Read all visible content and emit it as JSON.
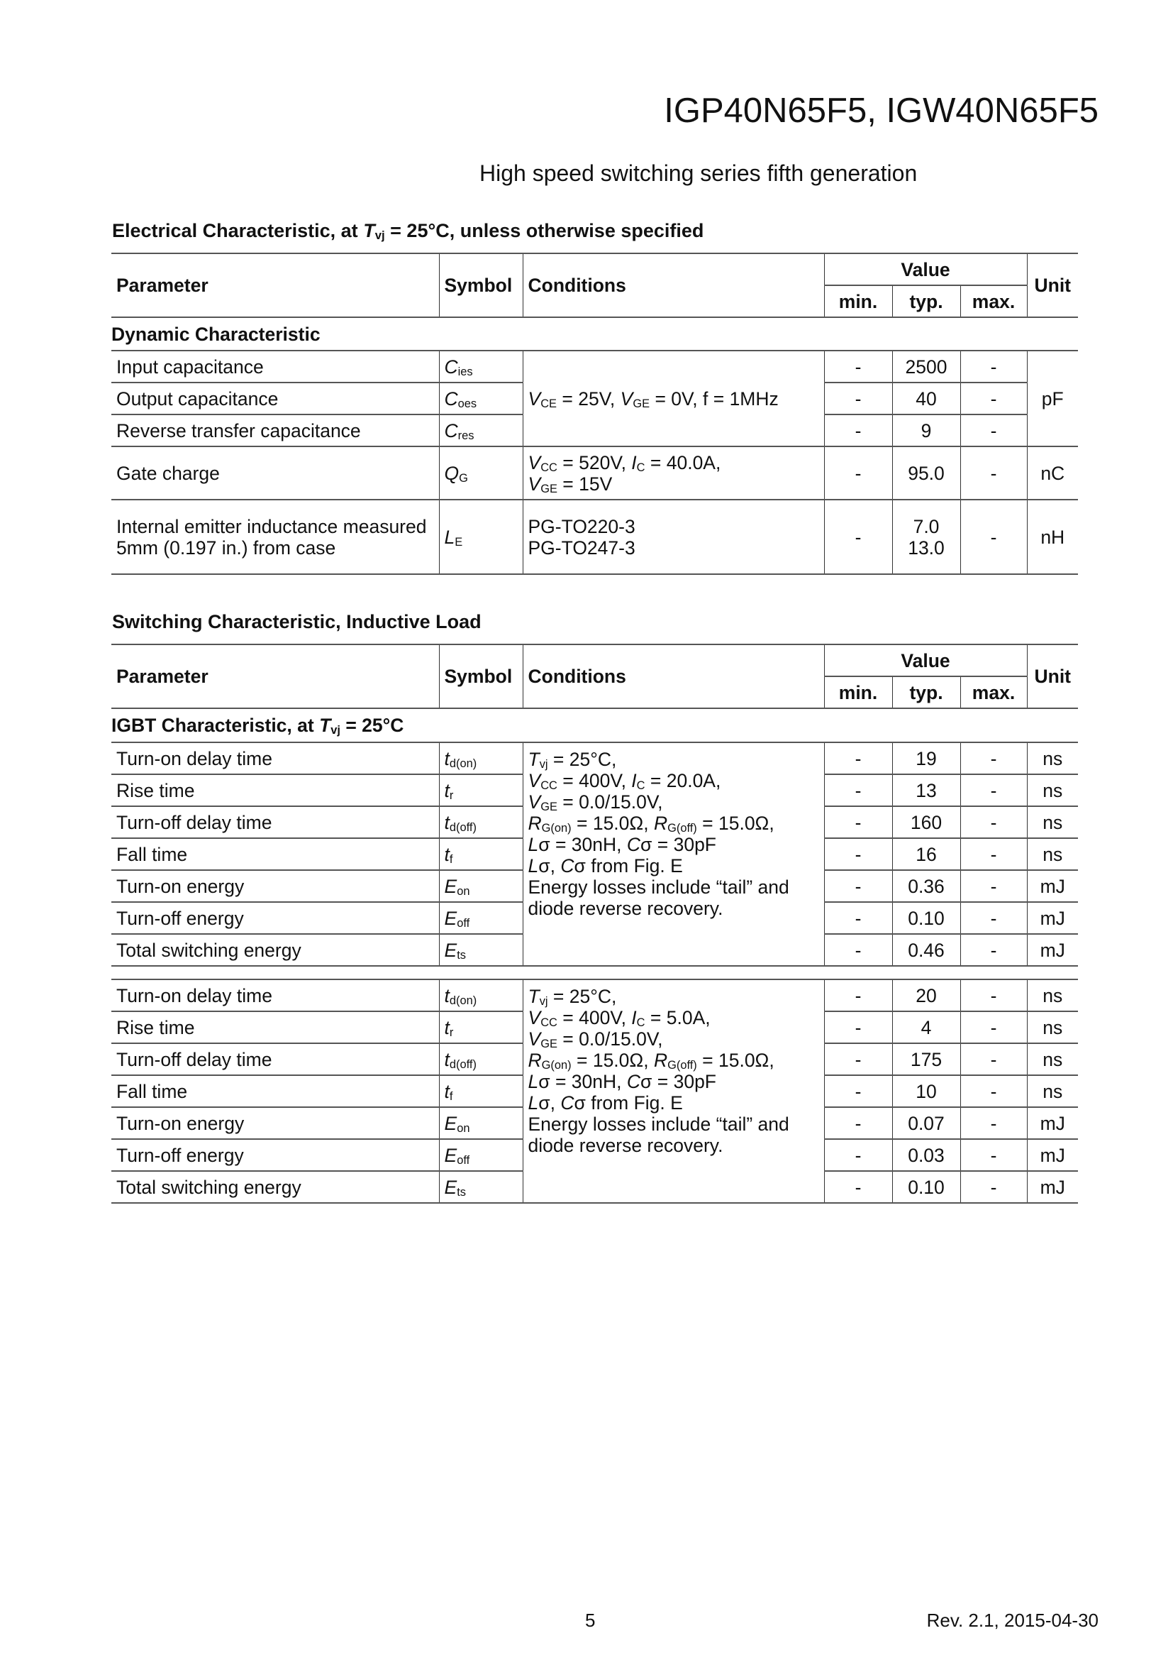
{
  "header": {
    "title": "IGP40N65F5, IGW40N65F5",
    "subtitle": "High speed switching series fifth generation"
  },
  "table_headers": {
    "parameter": "Parameter",
    "symbol": "Symbol",
    "conditions": "Conditions",
    "value": "Value",
    "min": "min.",
    "typ": "typ.",
    "max": "max.",
    "unit": "Unit"
  },
  "electrical": {
    "heading": [
      [
        "Electrical Characteristic, at ",
        ""
      ],
      [
        "T",
        "i"
      ],
      [
        "vj",
        "sub"
      ],
      [
        " = 25°C, unless otherwise specified",
        ""
      ]
    ],
    "subheading": [
      [
        "Dynamic Characteristic",
        ""
      ]
    ],
    "groups": [
      {
        "conditions": [
          [
            [
              "V",
              "i"
            ],
            [
              "CE",
              "sub"
            ],
            [
              " = 25V, ",
              ""
            ],
            [
              "V",
              "i"
            ],
            [
              "GE",
              "sub"
            ],
            [
              " = 0V, f = 1MHz",
              ""
            ]
          ]
        ],
        "unit": "pF",
        "rows": [
          {
            "parameter": "Input capacitance",
            "symbol": [
              [
                "C",
                "i"
              ],
              [
                "ies",
                "sub"
              ]
            ],
            "min": "-",
            "typ": "2500",
            "max": "-"
          },
          {
            "parameter": "Output capacitance",
            "symbol": [
              [
                "C",
                "i"
              ],
              [
                "oes",
                "sub"
              ]
            ],
            "min": "-",
            "typ": "40",
            "max": "-"
          },
          {
            "parameter": "Reverse transfer capacitance",
            "symbol": [
              [
                "C",
                "i"
              ],
              [
                "res",
                "sub"
              ]
            ],
            "min": "-",
            "typ": "9",
            "max": "-"
          }
        ]
      },
      {
        "conditions": [
          [
            [
              "V",
              "i"
            ],
            [
              "CC",
              "sub"
            ],
            [
              " = 520V, ",
              ""
            ],
            [
              "I",
              "i"
            ],
            [
              "C",
              "sub"
            ],
            [
              " = 40.0A,",
              ""
            ]
          ],
          [
            [
              "V",
              "i"
            ],
            [
              "GE",
              "sub"
            ],
            [
              " = 15V",
              ""
            ]
          ]
        ],
        "unit": "nC",
        "rows": [
          {
            "parameter": "Gate charge",
            "symbol": [
              [
                "Q",
                "i"
              ],
              [
                "G",
                "sub"
              ]
            ],
            "min": "-",
            "typ": "95.0",
            "max": "-"
          }
        ]
      },
      {
        "conditions": [
          [
            [
              "PG-TO220-3",
              ""
            ]
          ],
          [
            [
              "PG-TO247-3",
              ""
            ]
          ]
        ],
        "unit": "nH",
        "rows": [
          {
            "parameter": "Internal emitter inductance measured 5mm (0.197 in.) from case",
            "symbol": [
              [
                "L",
                "i"
              ],
              [
                "E",
                "sub"
              ]
            ],
            "min": "-",
            "typ": "7.0\n13.0",
            "max": "-"
          }
        ]
      }
    ]
  },
  "switching": {
    "heading": [
      [
        "Switching Characteristic, Inductive Load",
        ""
      ]
    ],
    "subheading": [
      [
        "IGBT Characteristic, at ",
        ""
      ],
      [
        "T",
        "i"
      ],
      [
        "vj",
        "sub"
      ],
      [
        " = 25°C",
        ""
      ]
    ],
    "groups": [
      {
        "conditions": [
          [
            [
              "T",
              "i"
            ],
            [
              "vj",
              "sub"
            ],
            [
              " = 25°C,",
              ""
            ]
          ],
          [
            [
              "V",
              "i"
            ],
            [
              "CC",
              "sub"
            ],
            [
              " = 400V, ",
              ""
            ],
            [
              "I",
              "i"
            ],
            [
              "C",
              "sub"
            ],
            [
              " = 20.0A,",
              ""
            ]
          ],
          [
            [
              "V",
              "i"
            ],
            [
              "GE",
              "sub"
            ],
            [
              " = 0.0/15.0V,",
              ""
            ]
          ],
          [
            [
              "R",
              "i"
            ],
            [
              "G(on)",
              "sub"
            ],
            [
              " = 15.0Ω, ",
              ""
            ],
            [
              "R",
              "i"
            ],
            [
              "G(off)",
              "sub"
            ],
            [
              " = 15.0Ω,",
              ""
            ]
          ],
          [
            [
              "L",
              "i"
            ],
            [
              "σ = 30nH, ",
              ""
            ],
            [
              "C",
              "i"
            ],
            [
              "σ = 30pF",
              ""
            ]
          ],
          [
            [
              "L",
              "i"
            ],
            [
              "σ, ",
              ""
            ],
            [
              "C",
              "i"
            ],
            [
              "σ from Fig. E",
              ""
            ]
          ],
          [
            [
              "Energy losses include “tail” and",
              ""
            ]
          ],
          [
            [
              "diode reverse recovery.",
              ""
            ]
          ]
        ],
        "rows": [
          {
            "parameter": "Turn-on delay time",
            "symbol": [
              [
                "t",
                "i"
              ],
              [
                "d(on)",
                "sub"
              ]
            ],
            "min": "-",
            "typ": "19",
            "max": "-",
            "unit": "ns"
          },
          {
            "parameter": "Rise time",
            "symbol": [
              [
                "t",
                "i"
              ],
              [
                "r",
                "sub"
              ]
            ],
            "min": "-",
            "typ": "13",
            "max": "-",
            "unit": "ns"
          },
          {
            "parameter": "Turn-off delay time",
            "symbol": [
              [
                "t",
                "i"
              ],
              [
                "d(off)",
                "sub"
              ]
            ],
            "min": "-",
            "typ": "160",
            "max": "-",
            "unit": "ns"
          },
          {
            "parameter": "Fall time",
            "symbol": [
              [
                "t",
                "i"
              ],
              [
                "f",
                "sub"
              ]
            ],
            "min": "-",
            "typ": "16",
            "max": "-",
            "unit": "ns"
          },
          {
            "parameter": "Turn-on energy",
            "symbol": [
              [
                "E",
                "i"
              ],
              [
                "on",
                "sub"
              ]
            ],
            "min": "-",
            "typ": "0.36",
            "max": "-",
            "unit": "mJ"
          },
          {
            "parameter": "Turn-off energy",
            "symbol": [
              [
                "E",
                "i"
              ],
              [
                "off",
                "sub"
              ]
            ],
            "min": "-",
            "typ": "0.10",
            "max": "-",
            "unit": "mJ"
          },
          {
            "parameter": "Total switching energy",
            "symbol": [
              [
                "E",
                "i"
              ],
              [
                "ts",
                "sub"
              ]
            ],
            "min": "-",
            "typ": "0.46",
            "max": "-",
            "unit": "mJ"
          }
        ]
      },
      {
        "conditions": [
          [
            [
              "T",
              "i"
            ],
            [
              "vj",
              "sub"
            ],
            [
              " = 25°C,",
              ""
            ]
          ],
          [
            [
              "V",
              "i"
            ],
            [
              "CC",
              "sub"
            ],
            [
              " = 400V, ",
              ""
            ],
            [
              "I",
              "i"
            ],
            [
              "C",
              "sub"
            ],
            [
              " = 5.0A,",
              ""
            ]
          ],
          [
            [
              "V",
              "i"
            ],
            [
              "GE",
              "sub"
            ],
            [
              " = 0.0/15.0V,",
              ""
            ]
          ],
          [
            [
              "R",
              "i"
            ],
            [
              "G(on)",
              "sub"
            ],
            [
              " = 15.0Ω, ",
              ""
            ],
            [
              "R",
              "i"
            ],
            [
              "G(off)",
              "sub"
            ],
            [
              " = 15.0Ω,",
              ""
            ]
          ],
          [
            [
              "L",
              "i"
            ],
            [
              "σ = 30nH, ",
              ""
            ],
            [
              "C",
              "i"
            ],
            [
              "σ = 30pF",
              ""
            ]
          ],
          [
            [
              "L",
              "i"
            ],
            [
              "σ, ",
              ""
            ],
            [
              "C",
              "i"
            ],
            [
              "σ from Fig. E",
              ""
            ]
          ],
          [
            [
              "Energy losses include “tail” and",
              ""
            ]
          ],
          [
            [
              "diode reverse recovery.",
              ""
            ]
          ]
        ],
        "rows": [
          {
            "parameter": "Turn-on delay time",
            "symbol": [
              [
                "t",
                "i"
              ],
              [
                "d(on)",
                "sub"
              ]
            ],
            "min": "-",
            "typ": "20",
            "max": "-",
            "unit": "ns"
          },
          {
            "parameter": "Rise time",
            "symbol": [
              [
                "t",
                "i"
              ],
              [
                "r",
                "sub"
              ]
            ],
            "min": "-",
            "typ": "4",
            "max": "-",
            "unit": "ns"
          },
          {
            "parameter": "Turn-off delay time",
            "symbol": [
              [
                "t",
                "i"
              ],
              [
                "d(off)",
                "sub"
              ]
            ],
            "min": "-",
            "typ": "175",
            "max": "-",
            "unit": "ns"
          },
          {
            "parameter": "Fall time",
            "symbol": [
              [
                "t",
                "i"
              ],
              [
                "f",
                "sub"
              ]
            ],
            "min": "-",
            "typ": "10",
            "max": "-",
            "unit": "ns"
          },
          {
            "parameter": "Turn-on energy",
            "symbol": [
              [
                "E",
                "i"
              ],
              [
                "on",
                "sub"
              ]
            ],
            "min": "-",
            "typ": "0.07",
            "max": "-",
            "unit": "mJ"
          },
          {
            "parameter": "Turn-off energy",
            "symbol": [
              [
                "E",
                "i"
              ],
              [
                "off",
                "sub"
              ]
            ],
            "min": "-",
            "typ": "0.03",
            "max": "-",
            "unit": "mJ"
          },
          {
            "parameter": "Total switching energy",
            "symbol": [
              [
                "E",
                "i"
              ],
              [
                "ts",
                "sub"
              ]
            ],
            "min": "-",
            "typ": "0.10",
            "max": "-",
            "unit": "mJ"
          }
        ]
      }
    ]
  },
  "footer": {
    "page_number": "5",
    "revision": "Rev. 2.1,  2015-04-30"
  }
}
